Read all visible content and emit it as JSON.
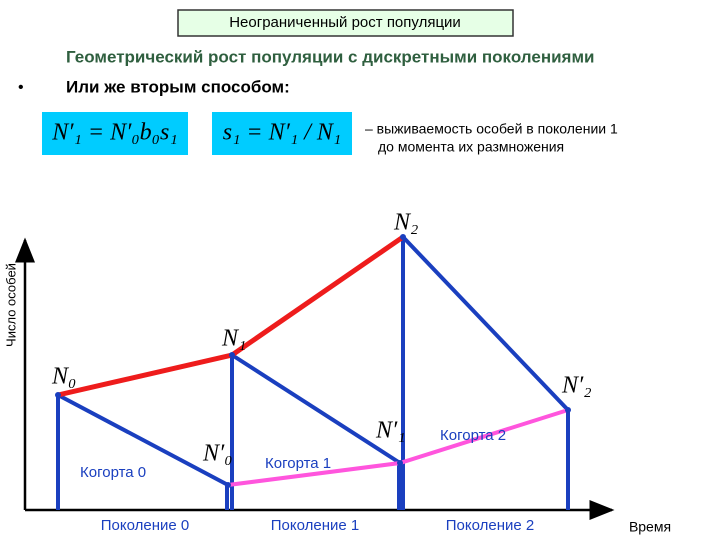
{
  "header": {
    "title": "Неограниченный рост популяции",
    "subtitle": "Геометрический рост популяции с дискретными поколениями",
    "bullet": "Или же вторым способом:"
  },
  "formulas": [
    "N′₁ = N′₀b₀s₁",
    "s₁ = N′₁ / N₁"
  ],
  "note": [
    "– выживаемость особей в поколении 1",
    "до момента их размножения"
  ],
  "axes": {
    "y_label": "Число особей",
    "x_label": "Время"
  },
  "points": [
    "N₀",
    "N₁",
    "N₂",
    "N′₀",
    "N′₁",
    "N′₂"
  ],
  "cohorts": [
    "Когорта 0",
    "Когорта 1",
    "Когорта 2"
  ],
  "generations": [
    "Поколение 0",
    "Поколение 1",
    "Поколение 2"
  ]
}
